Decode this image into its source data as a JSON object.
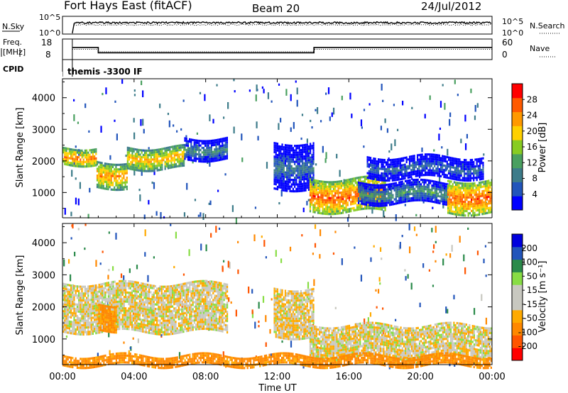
{
  "header": {
    "station": "Fort Hays East (fitACF)",
    "beam": "Beam 20",
    "date": "24/Jul/2012"
  },
  "nsky_panel": {
    "left_label": "N.Sky",
    "right_label": "N.Search",
    "left_ticks": [
      "10^5",
      "10^0"
    ],
    "right_ticks": [
      "10^5",
      "10^0"
    ]
  },
  "freq_panel": {
    "left_label_1": "Freq.",
    "left_label_2": "[MHz]",
    "right_label": "Nave",
    "left_ticks": [
      "18",
      "8"
    ],
    "right_ticks": [
      "60",
      "0"
    ]
  },
  "cpid": {
    "label": "CPID",
    "value": "themis -3300 IF"
  },
  "x_axis": {
    "ticks": [
      "00:00",
      "04:00",
      "08:00",
      "12:00",
      "16:00",
      "20:00",
      "00:00"
    ],
    "label": "Time UT"
  },
  "power_panel": {
    "ylabel": "Slant Range [km]",
    "yticks": [
      "4000",
      "3000",
      "2000",
      "1000"
    ],
    "colorbar_label": "Power [dB]",
    "colorbar_ticks": [
      "28",
      "24",
      "20",
      "16",
      "12",
      "8",
      "4"
    ]
  },
  "velocity_panel": {
    "ylabel": "Slant Range [km]",
    "yticks": [
      "4000",
      "3000",
      "2000",
      "1000"
    ],
    "colorbar_label": "Velocity [m s⁻¹]",
    "colorbar_ticks": [
      "200",
      "100",
      "50",
      "15",
      "-15",
      "-50",
      "-100",
      "-200"
    ]
  },
  "colors": {
    "power_scale": [
      "#0000ff",
      "#2255bb",
      "#3d7c8a",
      "#4aa060",
      "#88cc22",
      "#ffd000",
      "#ff9900",
      "#ff5a00",
      "#ff0000"
    ],
    "velocity_scale": [
      "#ff0000",
      "#ff5500",
      "#ff8800",
      "#ffaa00",
      "#c8c8c0",
      "#c8c8c0",
      "#88dd44",
      "#2a8a4a",
      "#2255bb",
      "#0000dd"
    ]
  },
  "chart_data": [
    {
      "type": "line",
      "title": "N.Sky",
      "x_range_hours": [
        0,
        24
      ],
      "series": [
        {
          "name": "N.Sky",
          "style": "solid",
          "level": "near 10^5 throughout, starting at 00:40 after a drop to 10^0 at 00:30"
        },
        {
          "name": "N.Search",
          "style": "dotted",
          "level": "slightly below 10^5 throughout"
        }
      ]
    },
    {
      "type": "line",
      "title": "Freq.",
      "ylim": [
        8,
        18
      ],
      "series": [
        {
          "name": "Freq. [MHz]",
          "style": "solid",
          "x_hours": [
            0.55,
            2.0,
            2.0,
            14.05,
            14.05,
            24
          ],
          "values": [
            13.9,
            13.9,
            11.3,
            11.3,
            13.9,
            13.9
          ]
        },
        {
          "name": "Nave",
          "style": "dotted",
          "ylim": [
            0,
            60
          ],
          "x_hours": [
            0.55,
            2.0,
            2.0,
            14.05,
            14.05,
            24
          ],
          "values": [
            30,
            30,
            23,
            23,
            30,
            30
          ]
        }
      ]
    },
    {
      "type": "heatmap",
      "quantity": "Power",
      "unit": "dB",
      "x_range_hours": [
        0,
        24
      ],
      "y_range_km": [
        200,
        4600
      ],
      "bands": [
        {
          "x": [
            0.0,
            1.9
          ],
          "range_km": [
            1900,
            2450
          ],
          "power_db": 25
        },
        {
          "x": [
            1.9,
            3.6
          ],
          "range_km": [
            1200,
            2000
          ],
          "power_db": 24
        },
        {
          "x": [
            3.6,
            6.8
          ],
          "range_km": [
            1800,
            2450
          ],
          "power_db": 23
        },
        {
          "x": [
            6.8,
            9.2
          ],
          "range_km": [
            2050,
            2750
          ],
          "power_db": 11
        },
        {
          "x": [
            11.8,
            14.0
          ],
          "range_km": [
            1100,
            2600
          ],
          "power_db": 9
        },
        {
          "x": [
            13.8,
            18.0
          ],
          "range_km": [
            400,
            1450
          ],
          "power_db": 27
        },
        {
          "x": [
            16.5,
            21.5
          ],
          "range_km": [
            650,
            1350
          ],
          "power_db": 12
        },
        {
          "x": [
            21.5,
            24.0
          ],
          "range_km": [
            350,
            1400
          ],
          "power_db": 27
        },
        {
          "x": [
            17.0,
            23.5
          ],
          "range_km": [
            1450,
            2150
          ],
          "power_db": 8
        }
      ]
    },
    {
      "type": "heatmap",
      "quantity": "Velocity",
      "unit": "m s-1",
      "x_range_hours": [
        0,
        24
      ],
      "y_range_km": [
        200,
        4600
      ],
      "bands": [
        {
          "x": [
            0.0,
            9.2
          ],
          "range_km": [
            1200,
            2750
          ],
          "velocity": -5
        },
        {
          "x": [
            2.0,
            3.0
          ],
          "range_km": [
            1300,
            2100
          ],
          "velocity": -60
        },
        {
          "x": [
            11.8,
            14.0
          ],
          "range_km": [
            1100,
            2600
          ],
          "velocity": -10
        },
        {
          "x": [
            13.8,
            24.0
          ],
          "range_km": [
            400,
            1450
          ],
          "velocity": -5
        },
        {
          "x": [
            0.0,
            24.0
          ],
          "range_km": [
            200,
            500
          ],
          "velocity": -70
        }
      ]
    }
  ]
}
